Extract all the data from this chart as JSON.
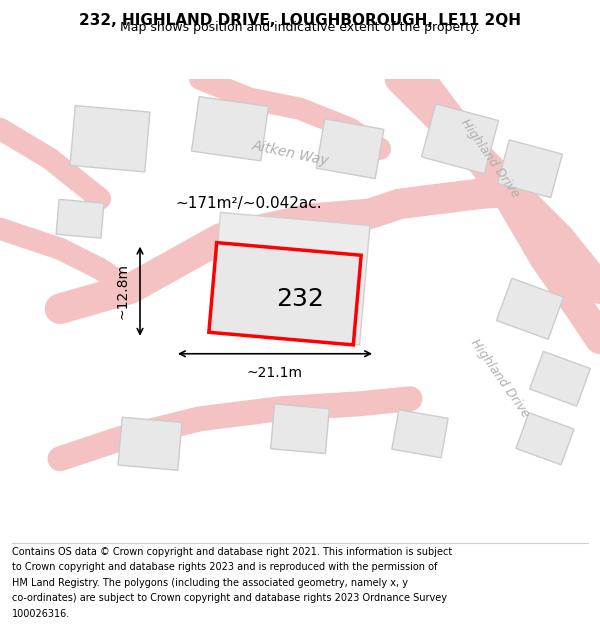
{
  "title": "232, HIGHLAND DRIVE, LOUGHBOROUGH, LE11 2QH",
  "subtitle": "Map shows position and indicative extent of the property.",
  "footer_lines": [
    "Contains OS data © Crown copyright and database right 2021. This information is subject",
    "to Crown copyright and database rights 2023 and is reproduced with the permission of",
    "HM Land Registry. The polygons (including the associated geometry, namely x, y",
    "co-ordinates) are subject to Crown copyright and database rights 2023 Ordnance Survey",
    "100026316."
  ],
  "map_bg": "#ffffff",
  "road_color": "#f4c2c2",
  "building_fill": "#e8e8e8",
  "building_edge": "#cccccc",
  "highlight_fill": "#e8e8e8",
  "highlight_edge": "#ff0000",
  "highlight_lw": 2.5,
  "label_232": "232",
  "area_label": "~171m²/~0.042ac.",
  "width_label": "~21.1m",
  "height_label": "~12.8m",
  "road_label_1": "Aitken Way",
  "road_label_2a": "Highland Drive",
  "road_label_2b": "Highland Drive",
  "title_fontsize": 11,
  "subtitle_fontsize": 9,
  "footer_fontsize": 7
}
